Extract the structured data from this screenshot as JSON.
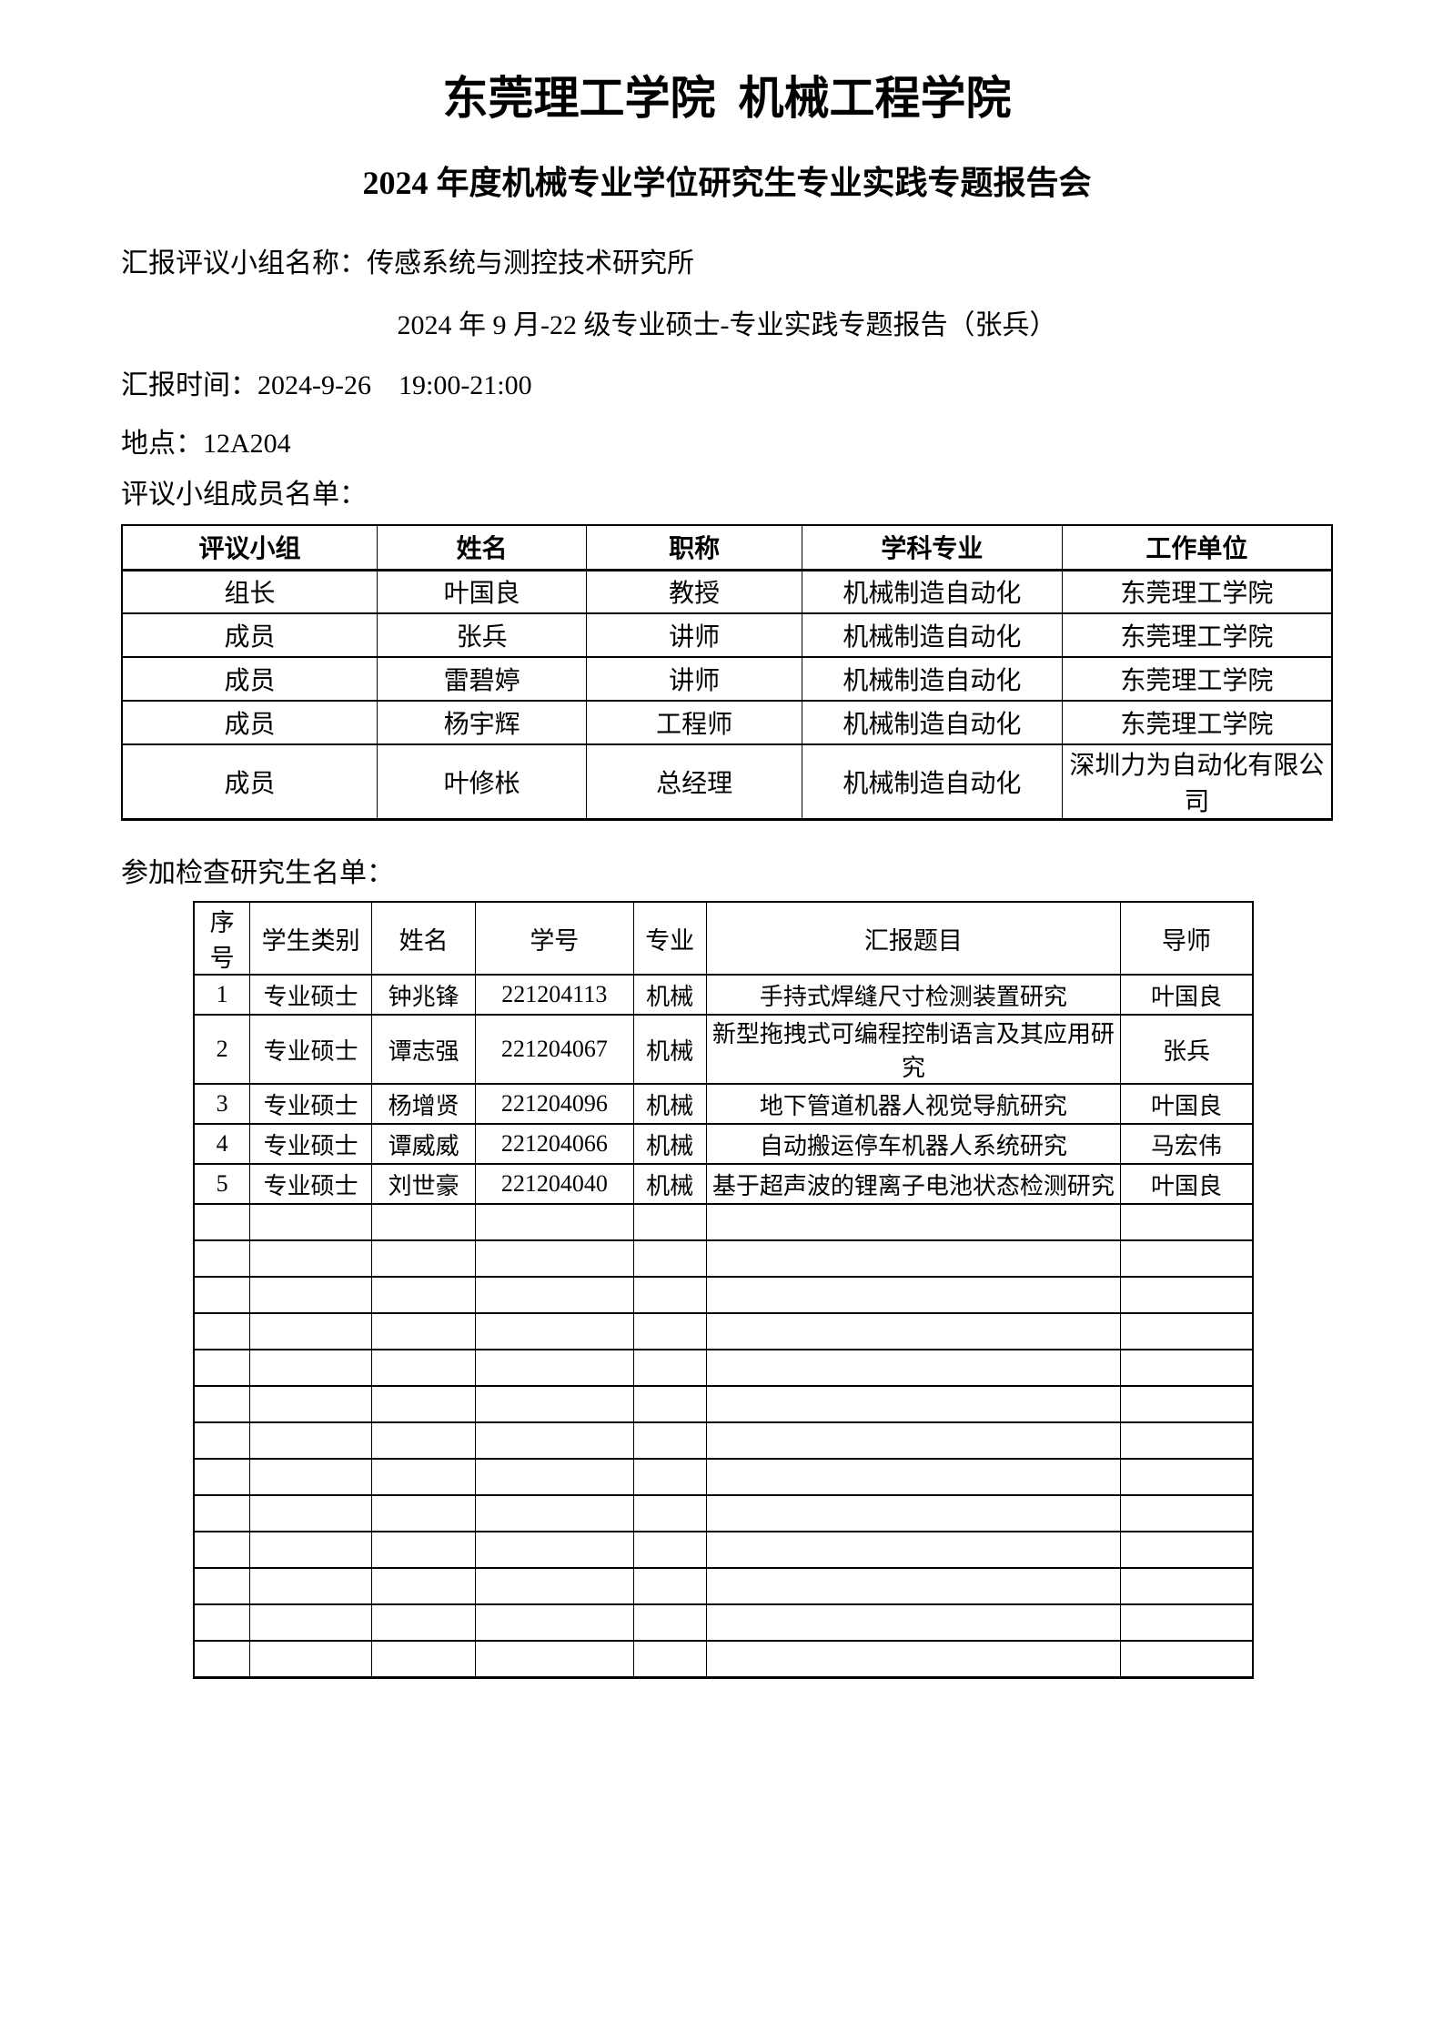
{
  "document": {
    "title": "东莞理工学院  机械工程学院",
    "subtitle": "2024 年度机械专业学位研究生专业实践专题报告会",
    "group_name_line": "汇报评议小组名称：传感系统与测控技术研究所",
    "report_title_line": "2024 年 9 月-22 级专业硕士-专业实践专题报告（张兵）",
    "time_line": "汇报时间：2024-9-26    19:00-21:00",
    "location_line": "地点：12A204",
    "panel_heading": "评议小组成员名单：",
    "students_heading": "参加检查研究生名单："
  },
  "panel_table": {
    "headers": [
      "评议小组",
      "姓名",
      "职称",
      "学科专业",
      "工作单位"
    ],
    "rows": [
      [
        "组长",
        "叶国良",
        "教授",
        "机械制造自动化",
        "东莞理工学院"
      ],
      [
        "成员",
        "张兵",
        "讲师",
        "机械制造自动化",
        "东莞理工学院"
      ],
      [
        "成员",
        "雷碧婷",
        "讲师",
        "机械制造自动化",
        "东莞理工学院"
      ],
      [
        "成员",
        "杨宇辉",
        "工程师",
        "机械制造自动化",
        "东莞理工学院"
      ],
      [
        "成员",
        "叶修枨",
        "总经理",
        "机械制造自动化",
        "深圳力为自动化有限公司"
      ]
    ],
    "empty_row_count": 0
  },
  "students_table": {
    "headers": [
      "序号",
      "学生类别",
      "姓名",
      "学号",
      "专业",
      "汇报题目",
      "导师"
    ],
    "rows": [
      [
        "1",
        "专业硕士",
        "钟兆锋",
        "221204113",
        "机械",
        "手持式焊缝尺寸检测装置研究",
        "叶国良"
      ],
      [
        "2",
        "专业硕士",
        "谭志强",
        "221204067",
        "机械",
        "新型拖拽式可编程控制语言及其应用研究",
        "张兵"
      ],
      [
        "3",
        "专业硕士",
        "杨增贤",
        "221204096",
        "机械",
        "地下管道机器人视觉导航研究",
        "叶国良"
      ],
      [
        "4",
        "专业硕士",
        "谭威威",
        "221204066",
        "机械",
        "自动搬运停车机器人系统研究",
        "马宏伟"
      ],
      [
        "5",
        "专业硕士",
        "刘世豪",
        "221204040",
        "机械",
        "基于超声波的锂离子电池状态检测研究",
        "叶国良"
      ]
    ],
    "empty_row_count": 13
  }
}
